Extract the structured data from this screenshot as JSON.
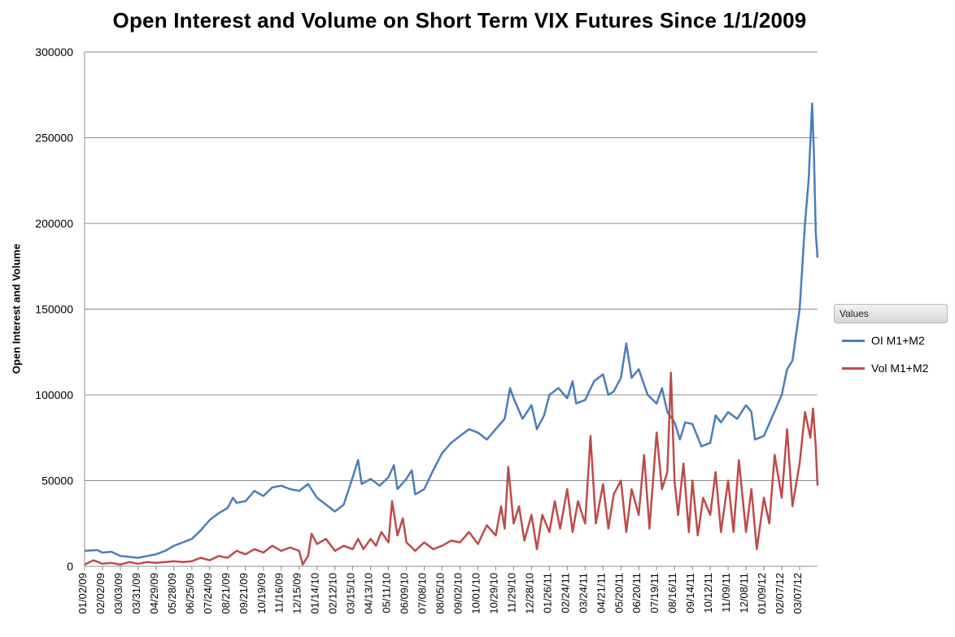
{
  "chart_data": {
    "type": "line",
    "title": "Open Interest and Volume on Short Term VIX Futures Since 1/1/2009",
    "xlabel": "",
    "ylabel": "Open Interest and Volume",
    "ylim": [
      0,
      300000
    ],
    "y_ticks": [
      "0",
      "50000",
      "100000",
      "150000",
      "200000",
      "250000",
      "300000"
    ],
    "x_tick_labels": [
      "01/02/09",
      "02/02/09",
      "03/03/09",
      "03/31/09",
      "04/29/09",
      "05/28/09",
      "06/25/09",
      "07/24/09",
      "08/21/09",
      "09/21/09",
      "10/19/09",
      "11/16/09",
      "12/15/09",
      "01/14/10",
      "02/12/10",
      "03/15/10",
      "04/13/10",
      "05/11/10",
      "06/09/10",
      "07/08/10",
      "08/05/10",
      "09/02/10",
      "10/01/10",
      "10/29/10",
      "11/29/10",
      "12/28/10",
      "01/26/11",
      "02/24/11",
      "03/24/11",
      "04/21/11",
      "05/20/11",
      "06/20/11",
      "07/19/11",
      "08/16/11",
      "09/14/11",
      "10/12/11",
      "11/09/11",
      "12/08/11",
      "01/09/12",
      "02/07/12",
      "03/07/12"
    ],
    "grid": true,
    "legend_position": "right",
    "legend_title": "Values",
    "x_index_range": [
      0,
      41
    ],
    "series": [
      {
        "name": "OI M1+M2",
        "color": "#4a7ebb",
        "points": [
          [
            0,
            9000
          ],
          [
            0.7,
            9500
          ],
          [
            1,
            8000
          ],
          [
            1.5,
            8500
          ],
          [
            2,
            6000
          ],
          [
            2.5,
            5500
          ],
          [
            3,
            5000
          ],
          [
            3.5,
            6000
          ],
          [
            4,
            7000
          ],
          [
            4.5,
            9000
          ],
          [
            5,
            12000
          ],
          [
            5.5,
            14000
          ],
          [
            6,
            16000
          ],
          [
            6.5,
            21000
          ],
          [
            7,
            27000
          ],
          [
            7.5,
            31000
          ],
          [
            8,
            34000
          ],
          [
            8.3,
            40000
          ],
          [
            8.5,
            37000
          ],
          [
            9,
            38000
          ],
          [
            9.5,
            44000
          ],
          [
            10,
            41000
          ],
          [
            10.5,
            46000
          ],
          [
            11,
            47000
          ],
          [
            11.5,
            45000
          ],
          [
            12,
            44000
          ],
          [
            12.5,
            48000
          ],
          [
            13,
            40000
          ],
          [
            13.5,
            36000
          ],
          [
            14,
            32000
          ],
          [
            14.5,
            36000
          ],
          [
            15,
            52000
          ],
          [
            15.3,
            62000
          ],
          [
            15.5,
            48000
          ],
          [
            16,
            51000
          ],
          [
            16.5,
            47000
          ],
          [
            17,
            52000
          ],
          [
            17.3,
            59000
          ],
          [
            17.5,
            45000
          ],
          [
            18,
            51000
          ],
          [
            18.3,
            56000
          ],
          [
            18.5,
            42000
          ],
          [
            19,
            45000
          ],
          [
            19.5,
            56000
          ],
          [
            20,
            66000
          ],
          [
            20.5,
            72000
          ],
          [
            21,
            76000
          ],
          [
            21.5,
            80000
          ],
          [
            22,
            78000
          ],
          [
            22.5,
            74000
          ],
          [
            23,
            80000
          ],
          [
            23.5,
            86000
          ],
          [
            23.8,
            104000
          ],
          [
            24,
            98000
          ],
          [
            24.5,
            86000
          ],
          [
            25,
            94000
          ],
          [
            25.3,
            80000
          ],
          [
            25.7,
            88000
          ],
          [
            26,
            100000
          ],
          [
            26.5,
            104000
          ],
          [
            27,
            98000
          ],
          [
            27.3,
            108000
          ],
          [
            27.5,
            95000
          ],
          [
            28,
            97000
          ],
          [
            28.5,
            108000
          ],
          [
            29,
            112000
          ],
          [
            29.3,
            100000
          ],
          [
            29.6,
            102000
          ],
          [
            30,
            110000
          ],
          [
            30.3,
            130000
          ],
          [
            30.6,
            110000
          ],
          [
            31,
            115000
          ],
          [
            31.5,
            100000
          ],
          [
            32,
            95000
          ],
          [
            32.3,
            104000
          ],
          [
            32.6,
            90000
          ],
          [
            33,
            84000
          ],
          [
            33.3,
            74000
          ],
          [
            33.6,
            84000
          ],
          [
            34,
            83000
          ],
          [
            34.5,
            70000
          ],
          [
            35,
            72000
          ],
          [
            35.3,
            88000
          ],
          [
            35.6,
            84000
          ],
          [
            36,
            90000
          ],
          [
            36.5,
            86000
          ],
          [
            37,
            94000
          ],
          [
            37.3,
            90000
          ],
          [
            37.5,
            74000
          ],
          [
            38,
            76000
          ],
          [
            38.5,
            88000
          ],
          [
            39,
            100000
          ],
          [
            39.3,
            115000
          ],
          [
            39.6,
            120000
          ],
          [
            40,
            150000
          ],
          [
            40.3,
            200000
          ],
          [
            40.5,
            225000
          ],
          [
            40.7,
            270000
          ],
          [
            40.8,
            240000
          ],
          [
            40.9,
            195000
          ],
          [
            41,
            180000
          ]
        ]
      },
      {
        "name": "Vol M1+M2",
        "color": "#be4b48",
        "points": [
          [
            0,
            1000
          ],
          [
            0.5,
            3500
          ],
          [
            1,
            1500
          ],
          [
            1.5,
            2000
          ],
          [
            2,
            1000
          ],
          [
            2.5,
            2500
          ],
          [
            3,
            1500
          ],
          [
            3.5,
            2500
          ],
          [
            4,
            2000
          ],
          [
            4.5,
            2500
          ],
          [
            5,
            3000
          ],
          [
            5.5,
            2500
          ],
          [
            6,
            3000
          ],
          [
            6.5,
            5000
          ],
          [
            7,
            3500
          ],
          [
            7.5,
            6000
          ],
          [
            8,
            5000
          ],
          [
            8.5,
            9000
          ],
          [
            9,
            7000
          ],
          [
            9.5,
            10000
          ],
          [
            10,
            8000
          ],
          [
            10.5,
            12000
          ],
          [
            11,
            9000
          ],
          [
            11.5,
            11000
          ],
          [
            12,
            9000
          ],
          [
            12.2,
            1000
          ],
          [
            12.5,
            6000
          ],
          [
            12.7,
            19000
          ],
          [
            13,
            13000
          ],
          [
            13.5,
            16000
          ],
          [
            14,
            9000
          ],
          [
            14.5,
            12000
          ],
          [
            15,
            10000
          ],
          [
            15.3,
            16000
          ],
          [
            15.6,
            10000
          ],
          [
            16,
            16000
          ],
          [
            16.3,
            12000
          ],
          [
            16.6,
            20000
          ],
          [
            17,
            14000
          ],
          [
            17.2,
            38000
          ],
          [
            17.5,
            18000
          ],
          [
            17.8,
            28000
          ],
          [
            18,
            14000
          ],
          [
            18.5,
            9000
          ],
          [
            19,
            14000
          ],
          [
            19.5,
            10000
          ],
          [
            20,
            12000
          ],
          [
            20.5,
            15000
          ],
          [
            21,
            14000
          ],
          [
            21.5,
            20000
          ],
          [
            22,
            13000
          ],
          [
            22.5,
            24000
          ],
          [
            23,
            18000
          ],
          [
            23.3,
            35000
          ],
          [
            23.5,
            22000
          ],
          [
            23.7,
            58000
          ],
          [
            24,
            25000
          ],
          [
            24.3,
            35000
          ],
          [
            24.6,
            15000
          ],
          [
            25,
            30000
          ],
          [
            25.3,
            10000
          ],
          [
            25.6,
            30000
          ],
          [
            26,
            20000
          ],
          [
            26.3,
            38000
          ],
          [
            26.6,
            22000
          ],
          [
            27,
            45000
          ],
          [
            27.3,
            20000
          ],
          [
            27.6,
            38000
          ],
          [
            28,
            25000
          ],
          [
            28.3,
            76000
          ],
          [
            28.6,
            25000
          ],
          [
            29,
            48000
          ],
          [
            29.3,
            22000
          ],
          [
            29.6,
            42000
          ],
          [
            30,
            50000
          ],
          [
            30.3,
            20000
          ],
          [
            30.6,
            45000
          ],
          [
            31,
            30000
          ],
          [
            31.3,
            65000
          ],
          [
            31.6,
            22000
          ],
          [
            32,
            78000
          ],
          [
            32.3,
            45000
          ],
          [
            32.6,
            55000
          ],
          [
            32.8,
            113000
          ],
          [
            33,
            50000
          ],
          [
            33.2,
            30000
          ],
          [
            33.5,
            60000
          ],
          [
            33.8,
            20000
          ],
          [
            34,
            50000
          ],
          [
            34.3,
            18000
          ],
          [
            34.6,
            40000
          ],
          [
            35,
            30000
          ],
          [
            35.3,
            55000
          ],
          [
            35.6,
            20000
          ],
          [
            36,
            50000
          ],
          [
            36.3,
            20000
          ],
          [
            36.6,
            62000
          ],
          [
            37,
            20000
          ],
          [
            37.3,
            45000
          ],
          [
            37.6,
            10000
          ],
          [
            38,
            40000
          ],
          [
            38.3,
            25000
          ],
          [
            38.6,
            65000
          ],
          [
            39,
            40000
          ],
          [
            39.3,
            80000
          ],
          [
            39.6,
            35000
          ],
          [
            40,
            60000
          ],
          [
            40.3,
            90000
          ],
          [
            40.6,
            75000
          ],
          [
            40.75,
            92000
          ],
          [
            40.9,
            70000
          ],
          [
            41,
            47000
          ]
        ]
      }
    ]
  }
}
